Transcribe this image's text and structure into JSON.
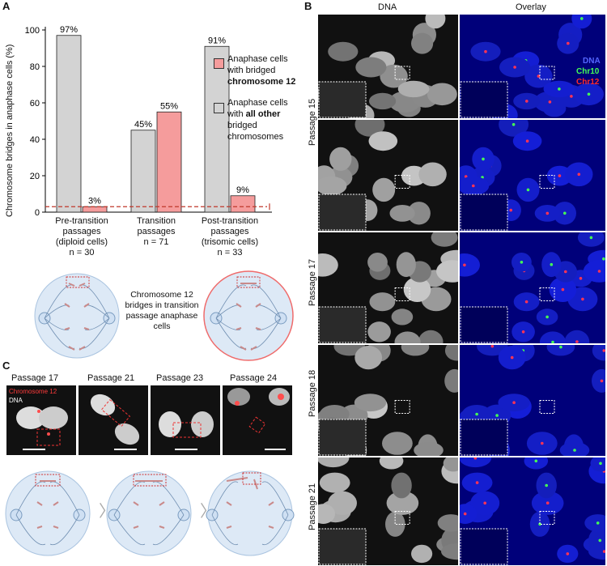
{
  "panels": {
    "a": "A",
    "b": "B",
    "c": "C"
  },
  "chart_data": {
    "type": "bar",
    "ylabel": "Chromosome bridges in anaphase cells (%)",
    "ylim": [
      0,
      100
    ],
    "yticks": [
      "0",
      "20",
      "40",
      "60",
      "80",
      "100"
    ],
    "categories": [
      {
        "lines": [
          "Pre-transition",
          "passages",
          "(diploid cells)",
          "n = 30"
        ]
      },
      {
        "lines": [
          "Transition",
          "passages",
          "n = 71"
        ]
      },
      {
        "lines": [
          "Post-transition",
          "passages",
          "(trisomic cells)",
          "n = 33"
        ]
      }
    ],
    "series": [
      {
        "legend": "Anaphase cells with all other bridged chromosomes",
        "color": "#d3d3d3",
        "values": [
          97,
          45,
          91
        ],
        "labels": [
          "97%",
          "45%",
          "91%"
        ]
      },
      {
        "legend": "Anaphase cells with bridged chromosome 12",
        "color": "#f59c9c",
        "values": [
          3,
          55,
          9
        ],
        "labels": [
          "3%",
          "55%",
          "9%"
        ]
      }
    ],
    "baseline": 3,
    "legend": {
      "red": [
        "Anaphase cells",
        "with bridged"
      ],
      "red_bold": "chromosome 12",
      "gray": [
        "Anaphase cells",
        "with"
      ],
      "gray_bold": "all other",
      "gray_rest": [
        "bridged",
        "chromosomes"
      ]
    }
  },
  "schematic_a": {
    "caption": [
      "Chromosome 12",
      "bridges in transition",
      "passage anaphase",
      "cells"
    ]
  },
  "panel_b": {
    "col_headers": [
      "DNA",
      "Overlay"
    ],
    "rows": [
      "Passage 15",
      "Passage 17",
      "Passage 18",
      "Passage 21"
    ],
    "legend": [
      "DNA",
      "Chr10",
      "Chr12"
    ],
    "legend_colors": [
      "#5566ff",
      "#44ff55",
      "#ff2a2a"
    ]
  },
  "panel_c": {
    "passages": [
      "Passage 17",
      "Passage 21",
      "Passage 23",
      "Passage 24"
    ],
    "stain_red": "Chromosome 12",
    "stain_white": "DNA"
  }
}
